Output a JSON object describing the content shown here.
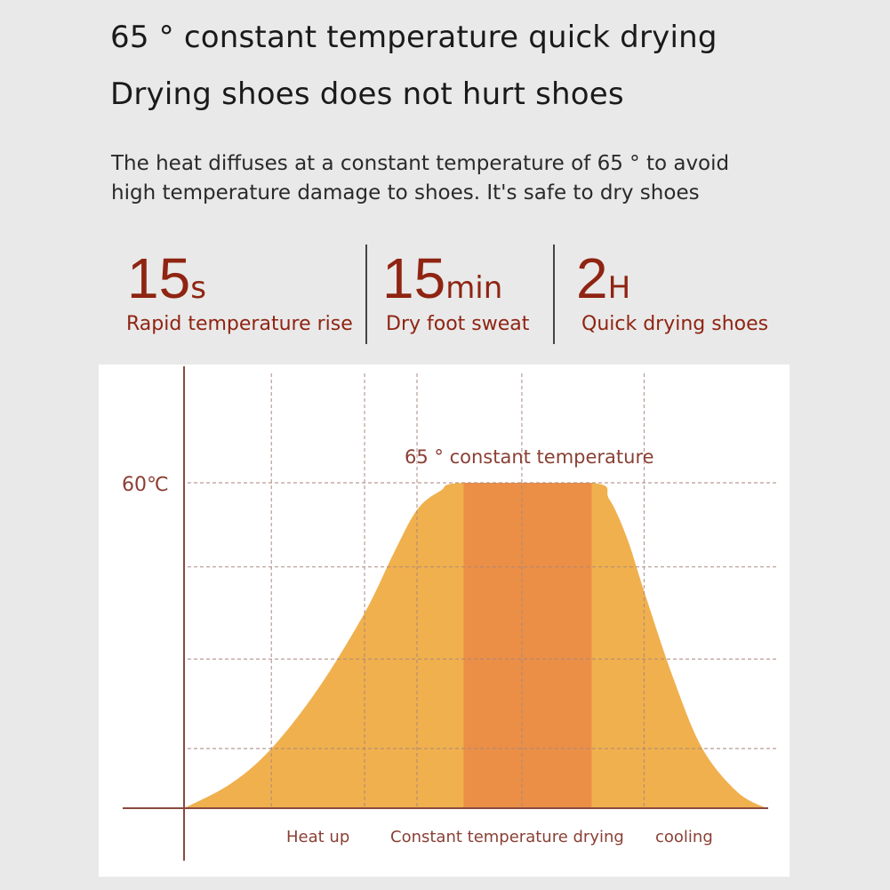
{
  "header": {
    "title_line1": "65 ° constant temperature quick drying",
    "title_line2": "Drying shoes does not hurt shoes",
    "description_line1": "The heat diffuses at a constant temperature of 65 ° to avoid",
    "description_line2": "high temperature damage to shoes. It's safe to dry shoes"
  },
  "stats": [
    {
      "value": "15",
      "unit": "s",
      "label": "Rapid temperature rise"
    },
    {
      "value": "15",
      "unit": "min",
      "label": "Dry foot sweat"
    },
    {
      "value": "2",
      "unit": "H",
      "label": "Quick drying shoes"
    }
  ],
  "colors": {
    "accent": "#8f2412",
    "curve_fill": "#f0b04e",
    "constant_band": "#eb8f47",
    "axis": "#8a4a3e"
  },
  "chart_data": {
    "type": "area",
    "title": "65 ° constant temperature",
    "ylabel_tick": "60℃",
    "y_max_label_value": 60,
    "ylim": [
      0,
      60
    ],
    "xlim": [
      0,
      100
    ],
    "grid": true,
    "y_grid_values": [
      11,
      27.5,
      44.5,
      60
    ],
    "x_grid_values": [
      15,
      31,
      40,
      58,
      79
    ],
    "phases": [
      "Heat up",
      "Constant temperature drying",
      "cooling"
    ],
    "constant_band": [
      48,
      70
    ],
    "series": [
      {
        "name": "temperature",
        "x": [
          0,
          8,
          15,
          23,
          31,
          36,
          40,
          44,
          48,
          70,
          73,
          76,
          79,
          84,
          89,
          95,
          100
        ],
        "y": [
          0,
          4.5,
          11,
          22,
          36,
          47,
          55,
          58.5,
          60,
          60,
          57,
          50,
          40,
          24,
          11,
          3,
          0
        ]
      }
    ]
  }
}
